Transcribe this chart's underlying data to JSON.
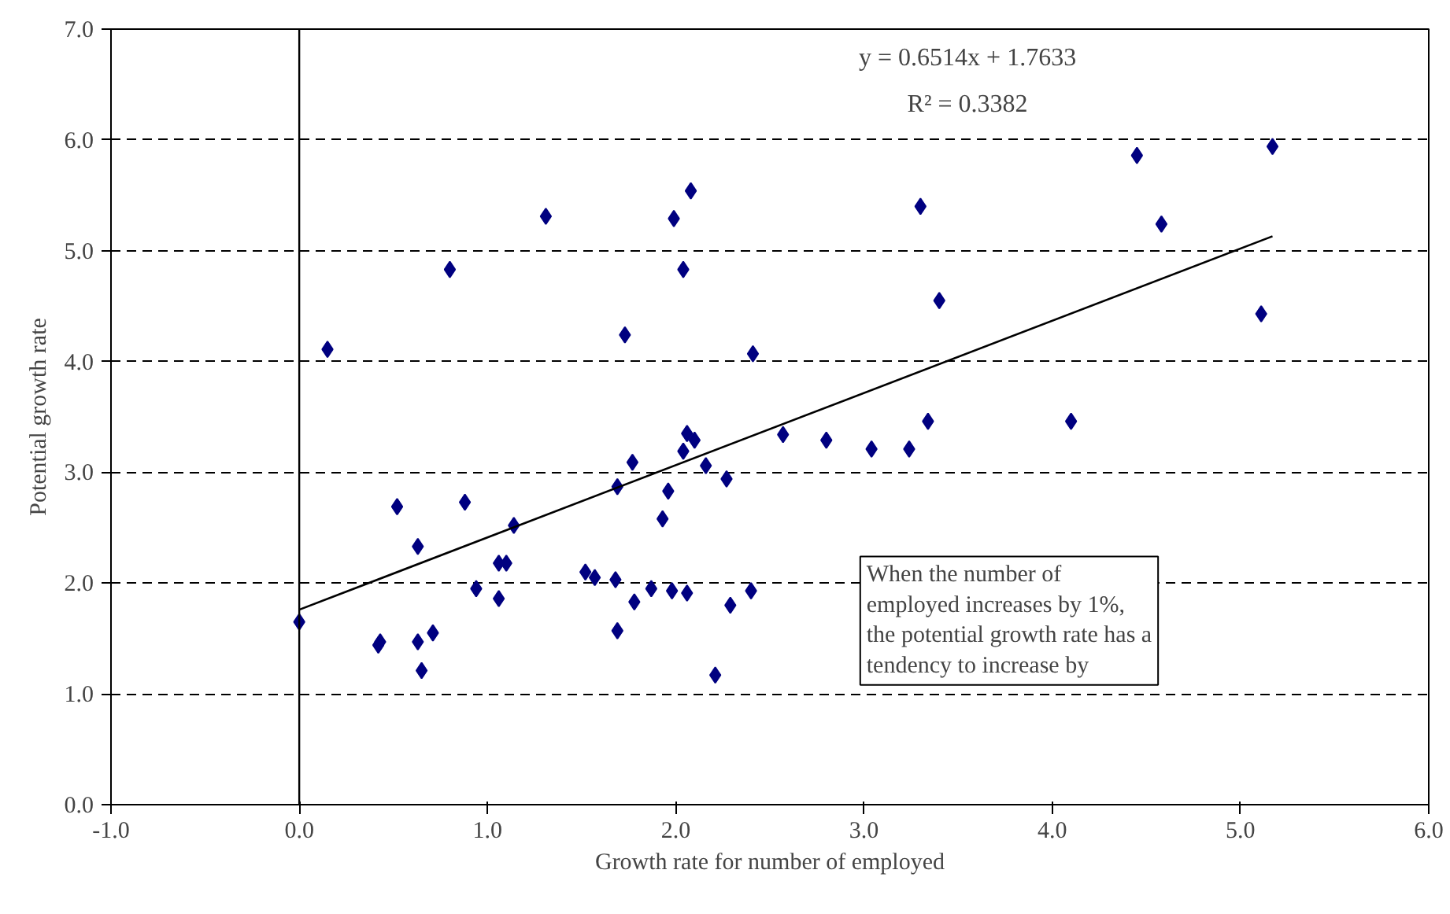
{
  "chart_data": {
    "type": "scatter",
    "xlabel": "Growth rate for number of employed",
    "ylabel": "Potential growth rate",
    "annotations": [
      "y = 0.6514x + 1.7633",
      "R² = 0.3382",
      "When the number of\nemployed increases by 1%,\nthe potential growth rate has a\ntendency to increase by"
    ],
    "series": [
      {
        "color": "#000080",
        "marker": "diamond",
        "x": [
          0.0,
          0.52,
          0.42,
          0.43,
          0.63,
          0.63,
          0.65,
          0.71,
          0.88,
          0.94,
          1.06,
          1.1,
          1.06,
          1.14,
          1.52,
          1.57,
          1.68,
          1.69,
          1.69,
          1.78,
          1.87,
          1.93,
          1.96,
          1.98,
          2.06,
          2.16,
          2.27,
          2.21,
          2.29,
          2.4,
          1.77,
          0.15,
          0.8,
          1.31,
          1.73,
          1.99,
          2.08,
          2.04,
          2.41,
          2.06,
          2.1,
          2.04,
          2.57,
          2.8,
          3.04,
          3.24,
          3.34,
          3.3,
          3.4,
          4.1,
          4.45,
          4.58,
          5.11,
          5.17
        ],
        "values": [
          1.65,
          2.69,
          1.44,
          1.47,
          2.33,
          1.47,
          1.21,
          1.55,
          2.73,
          1.95,
          2.18,
          2.18,
          1.86,
          2.52,
          2.1,
          2.05,
          2.03,
          2.87,
          1.57,
          1.83,
          1.95,
          2.58,
          2.83,
          1.93,
          1.91,
          3.06,
          2.94,
          1.17,
          1.8,
          1.93,
          3.09,
          4.11,
          4.83,
          5.31,
          4.24,
          5.29,
          5.54,
          4.83,
          4.07,
          3.35,
          3.29,
          3.19,
          3.34,
          3.29,
          3.21,
          3.21,
          3.46,
          5.4,
          4.55,
          3.46,
          5.86,
          5.24,
          4.43,
          5.94
        ]
      },
      {
        "type": "line",
        "color": "#000000",
        "line_style": "solid",
        "x": [
          0.0,
          5.17
        ],
        "values": [
          1.76,
          5.13
        ]
      }
    ],
    "xlim": [
      -1.0,
      6.0
    ],
    "xticks": [
      {
        "value": -1,
        "label": "-1.0"
      },
      {
        "value": 0,
        "label": "0.0"
      },
      {
        "value": 1,
        "label": "1.0"
      },
      {
        "value": 2,
        "label": "2.0"
      },
      {
        "value": 3,
        "label": "3.0"
      },
      {
        "value": 4,
        "label": "4.0"
      },
      {
        "value": 5,
        "label": "5.0"
      },
      {
        "value": 6,
        "label": "6.0"
      }
    ],
    "ylim": [
      0.0,
      7.0
    ],
    "yticks": [
      {
        "value": 0,
        "label": "0.0"
      },
      {
        "value": 1,
        "label": "1.0"
      },
      {
        "value": 2,
        "label": "2.0"
      },
      {
        "value": 3,
        "label": "3.0"
      },
      {
        "value": 4,
        "label": "4.0"
      },
      {
        "value": 5,
        "label": "5.0"
      },
      {
        "value": 6,
        "label": "6.0"
      },
      {
        "value": 7,
        "label": "7.0"
      }
    ],
    "grid": "y",
    "ref_lines": [
      {
        "axis": "x",
        "value": 0,
        "color": "#000000",
        "line_style": "solid"
      }
    ]
  }
}
